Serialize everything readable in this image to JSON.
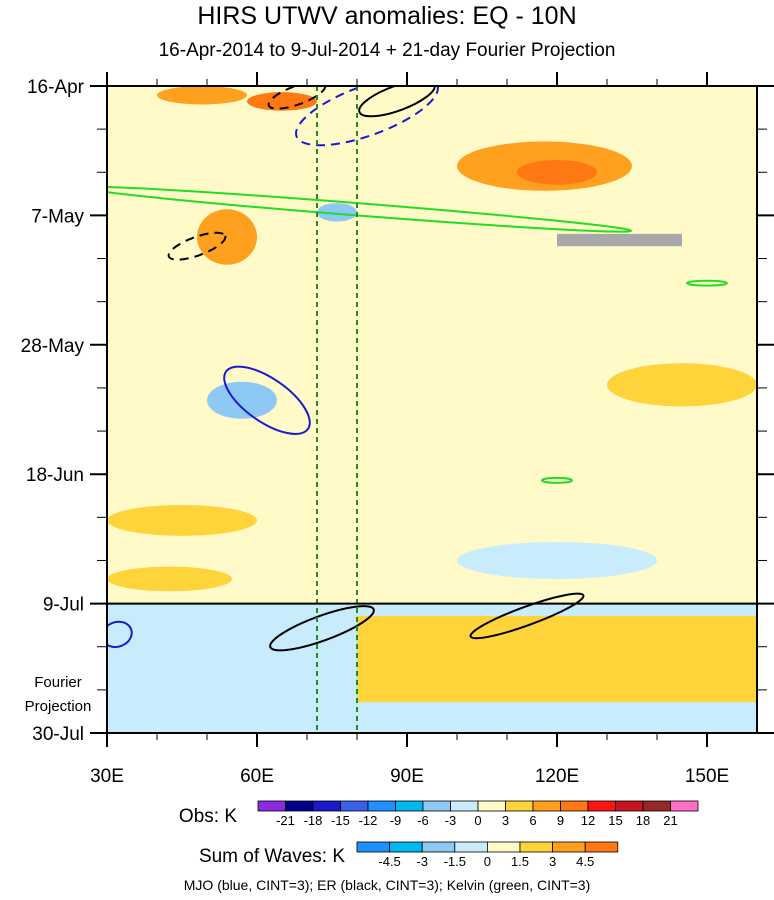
{
  "chart_data": {
    "type": "heatmap",
    "title": "HIRS UTWV anomalies: EQ - 10N",
    "subtitle": "16-Apr-2014 to 9-Jul-2014 + 21-day Fourier Projection",
    "x_range": [
      30,
      160
    ],
    "x_ticks": [
      {
        "value": 30,
        "label": "30E"
      },
      {
        "value": 60,
        "label": "60E"
      },
      {
        "value": 90,
        "label": "90E"
      },
      {
        "value": 120,
        "label": "120E"
      },
      {
        "value": 150,
        "label": "150E"
      }
    ],
    "y_range_days": [
      0,
      105
    ],
    "y_ticks": [
      {
        "day": 0,
        "label": "16-Apr"
      },
      {
        "day": 21,
        "label": "7-May"
      },
      {
        "day": 42,
        "label": "28-May"
      },
      {
        "day": 63,
        "label": "18-Jun"
      },
      {
        "day": 84,
        "label": "9-Jul"
      },
      {
        "day": 105,
        "label": "30-Jul"
      }
    ],
    "projection_start_day": 84,
    "projection_label": [
      "Fourier",
      "Projection"
    ],
    "reference_lines_lon": [
      72,
      80
    ],
    "obs_legend": {
      "label": "Obs: K",
      "levels": [
        "-21",
        "-18",
        "-15",
        "-12",
        "-9",
        "-6",
        "-3",
        "0",
        "3",
        "6",
        "9",
        "12",
        "15",
        "18",
        "21"
      ],
      "colors": [
        "#8a2be2",
        "#00008b",
        "#1a1acd",
        "#3a5fe8",
        "#1e90ff",
        "#00b8f0",
        "#8ec8f5",
        "#c8ecfb",
        "#fffac8",
        "#ffd43a",
        "#ffa01e",
        "#ff7814",
        "#ff1414",
        "#c8141e",
        "#962828",
        "#ff6ec8"
      ]
    },
    "waves_legend": {
      "label": "Sum of Waves: K",
      "levels": [
        "-4.5",
        "-3",
        "-1.5",
        "0",
        "1.5",
        "3",
        "4.5"
      ],
      "colors": [
        "#1e90ff",
        "#00b8f0",
        "#8ec8f5",
        "#c8ecfb",
        "#fffac8",
        "#ffd43a",
        "#ffa01e",
        "#ff7814"
      ]
    },
    "features": [
      {
        "kind": "anomaly",
        "lon_range": [
          40,
          58
        ],
        "day_range": [
          0,
          3
        ],
        "level": 6
      },
      {
        "kind": "anomaly",
        "lon_range": [
          58,
          72
        ],
        "day_range": [
          1,
          4
        ],
        "level": 9
      },
      {
        "kind": "anomaly",
        "lon_range": [
          100,
          135
        ],
        "day_range": [
          9,
          17
        ],
        "level": 6
      },
      {
        "kind": "anomaly",
        "lon_range": [
          112,
          128
        ],
        "day_range": [
          12,
          16
        ],
        "level": 9
      },
      {
        "kind": "anomaly",
        "lon_range": [
          48,
          60
        ],
        "day_range": [
          20,
          29
        ],
        "level": 6
      },
      {
        "kind": "anomaly",
        "lon_range": [
          72,
          80
        ],
        "day_range": [
          19,
          22
        ],
        "level": -6
      },
      {
        "kind": "anomaly",
        "lon_range": [
          50,
          64
        ],
        "day_range": [
          48,
          54
        ],
        "level": -6
      },
      {
        "kind": "anomaly",
        "lon_range": [
          30,
          60
        ],
        "day_range": [
          68,
          73
        ],
        "level": 3
      },
      {
        "kind": "anomaly",
        "lon_range": [
          30,
          55
        ],
        "day_range": [
          78,
          82
        ],
        "level": 3
      },
      {
        "kind": "anomaly",
        "lon_range": [
          130,
          160
        ],
        "day_range": [
          45,
          52
        ],
        "level": 3
      },
      {
        "kind": "anomaly",
        "lon_range": [
          100,
          140
        ],
        "day_range": [
          74,
          80
        ],
        "level": -3
      },
      {
        "kind": "anomaly",
        "lon_range": [
          120,
          145
        ],
        "day_range": [
          24,
          26
        ],
        "level": "missing"
      },
      {
        "kind": "projection",
        "lon_range": [
          30,
          160
        ],
        "day_range": [
          84,
          105
        ],
        "level": -1.5
      },
      {
        "kind": "projection",
        "lon_range": [
          80,
          160
        ],
        "day_range": [
          86,
          100
        ],
        "level": 1.5
      }
    ],
    "wave_contours": [
      {
        "wave": "MJO",
        "color": "blue",
        "sign": "negative",
        "center": [
          82,
          4
        ],
        "axes": [
          15,
          4
        ]
      },
      {
        "wave": "MJO",
        "color": "blue",
        "sign": "positive",
        "center": [
          62,
          51
        ],
        "axes": [
          10,
          3.5
        ]
      },
      {
        "wave": "MJO",
        "color": "blue",
        "sign": "positive",
        "center": [
          32,
          89
        ],
        "axes": [
          3,
          2
        ]
      },
      {
        "wave": "ER",
        "color": "black",
        "sign": "negative",
        "center": [
          68,
          1.5
        ],
        "axes": [
          6,
          1.5
        ]
      },
      {
        "wave": "ER",
        "color": "black",
        "sign": "positive",
        "center": [
          88,
          2
        ],
        "axes": [
          8,
          2
        ]
      },
      {
        "wave": "ER",
        "color": "black",
        "sign": "negative",
        "center": [
          48,
          26
        ],
        "axes": [
          6,
          1.5
        ]
      },
      {
        "wave": "ER",
        "color": "black",
        "sign": "positive",
        "center": [
          73,
          88
        ],
        "axes": [
          11,
          2
        ]
      },
      {
        "wave": "ER",
        "color": "black",
        "sign": "positive",
        "center": [
          114,
          86
        ],
        "axes": [
          12,
          1.5
        ]
      },
      {
        "wave": "Kelvin",
        "color": "green",
        "sign": "positive",
        "center": [
          80,
          20
        ],
        "axes": [
          55,
          1
        ]
      },
      {
        "wave": "Kelvin",
        "color": "green",
        "sign": "positive",
        "center": [
          120,
          64
        ],
        "axes": [
          3,
          0.4
        ]
      },
      {
        "wave": "Kelvin",
        "color": "green",
        "sign": "positive",
        "center": [
          150,
          32
        ],
        "axes": [
          4,
          0.4
        ]
      }
    ],
    "footer": "MJO (blue, CINT=3); ER (black, CINT=3); Kelvin (green, CINT=3)"
  }
}
